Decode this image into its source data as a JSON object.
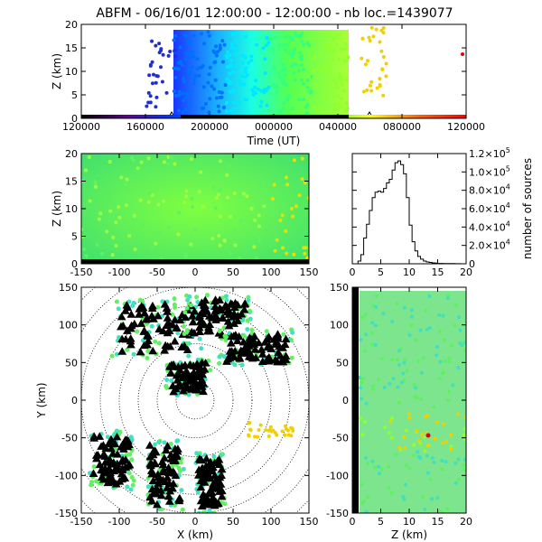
{
  "title": "ABFM - 06/16/01 12:00:00 - 12:00:00 - nb loc.=1439077",
  "chart_data": [
    {
      "id": "time-height",
      "type": "scatter",
      "xlabel": "Time (UT)",
      "ylabel": "Z (km)",
      "xticks": [
        "120000",
        "160000",
        "200000",
        "000000",
        "040000",
        "080000",
        "120000"
      ],
      "yticks": [
        "0",
        "5",
        "10",
        "15",
        "20"
      ],
      "ylim": [
        0,
        20
      ],
      "colormap": "rainbow by time"
    },
    {
      "id": "x-z",
      "type": "scatter",
      "xlabel": "",
      "ylabel": "Z (km)",
      "xticks": [
        "-150",
        "-100",
        "-50",
        "0",
        "50",
        "100",
        "150"
      ],
      "yticks": [
        "0",
        "5",
        "10",
        "15",
        "20"
      ],
      "xlim": [
        -150,
        150
      ],
      "ylim": [
        0,
        20
      ]
    },
    {
      "id": "altitude-histogram",
      "type": "line",
      "xlabel": "",
      "ylabel": "number of sources",
      "xticks": [
        "0",
        "5",
        "10",
        "15",
        "20"
      ],
      "ytick_values": [
        0,
        20000,
        40000,
        60000,
        80000,
        100000,
        120000
      ],
      "ytick_mantissa": [
        "0",
        "2.0×10",
        "4.0×10",
        "6.0×10",
        "8.0×10",
        "1.0×10",
        "1.2×10"
      ],
      "ytick_exponent": [
        "",
        "4",
        "4",
        "4",
        "4",
        "5",
        "5"
      ],
      "xlim": [
        0,
        20
      ],
      "ylim": [
        0,
        120000
      ],
      "x": [
        0.5,
        1,
        1.5,
        2,
        2.5,
        3,
        3.5,
        4,
        4.5,
        5,
        5.5,
        6,
        6.5,
        7,
        7.5,
        8,
        8.5,
        9,
        9.5,
        10,
        10.5,
        11,
        11.5,
        12,
        12.5,
        13,
        13.5,
        14,
        14.5,
        15,
        16,
        17,
        18,
        19,
        20
      ],
      "values": [
        0,
        0,
        3000,
        10000,
        28000,
        43000,
        58000,
        72000,
        78000,
        79000,
        78000,
        82000,
        88000,
        92000,
        102000,
        110000,
        112000,
        108000,
        98000,
        72000,
        42000,
        24000,
        14000,
        8000,
        5000,
        3000,
        2000,
        1500,
        1000,
        700,
        400,
        300,
        200,
        100,
        50
      ]
    },
    {
      "id": "plan-view",
      "type": "scatter",
      "xlabel": "X (km)",
      "ylabel": "Y (km)",
      "xticks": [
        "-150",
        "-100",
        "-50",
        "0",
        "50",
        "100",
        "150"
      ],
      "yticks": [
        "-150",
        "-100",
        "-50",
        "0",
        "50",
        "100",
        "150"
      ],
      "xlim": [
        -150,
        150
      ],
      "ylim": [
        -150,
        150
      ],
      "range_rings": true
    },
    {
      "id": "z-y",
      "type": "scatter",
      "xlabel": "Z (km)",
      "ylabel": "",
      "xticks": [
        "0",
        "5",
        "10",
        "15",
        "20"
      ],
      "yticks": [
        "-150",
        "-100",
        "-50",
        "0",
        "50",
        "100",
        "150"
      ],
      "xlim": [
        0,
        20
      ],
      "ylim": [
        -150,
        150
      ]
    }
  ]
}
